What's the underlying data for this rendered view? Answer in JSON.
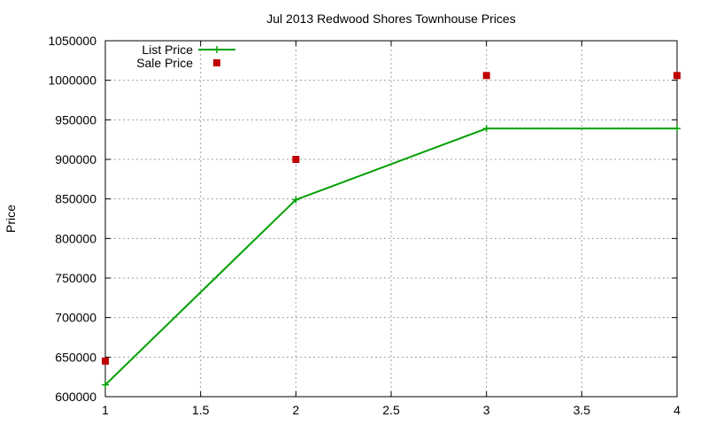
{
  "chart_data": {
    "type": "line",
    "title": "Jul 2013 Redwood Shores Townhouse Prices",
    "xlabel": "",
    "ylabel": "Price",
    "xlim": [
      1,
      4
    ],
    "ylim": [
      600000,
      1050000
    ],
    "x_ticks": [
      1,
      1.5,
      2,
      2.5,
      3,
      3.5,
      4
    ],
    "x_tick_labels": [
      "1",
      "1.5",
      "2",
      "2.5",
      "3",
      "3.5",
      "4"
    ],
    "y_ticks": [
      600000,
      650000,
      700000,
      750000,
      800000,
      850000,
      900000,
      950000,
      1000000,
      1050000
    ],
    "y_tick_labels": [
      "600000",
      "650000",
      "700000",
      "750000",
      "800000",
      "850000",
      "900000",
      "950000",
      "1000000",
      "1050000"
    ],
    "grid": true,
    "legend_position": "top-left",
    "series": [
      {
        "name": "List Price",
        "style": "line-with-plus-markers",
        "color": "#00a000",
        "x": [
          1,
          2,
          3,
          4
        ],
        "y": [
          615000,
          849000,
          939000,
          939000
        ]
      },
      {
        "name": "Sale Price",
        "style": "square-markers",
        "color": "#c00000",
        "x": [
          1,
          2,
          3,
          4
        ],
        "y": [
          645000,
          900000,
          1006000,
          1006000
        ]
      }
    ]
  }
}
